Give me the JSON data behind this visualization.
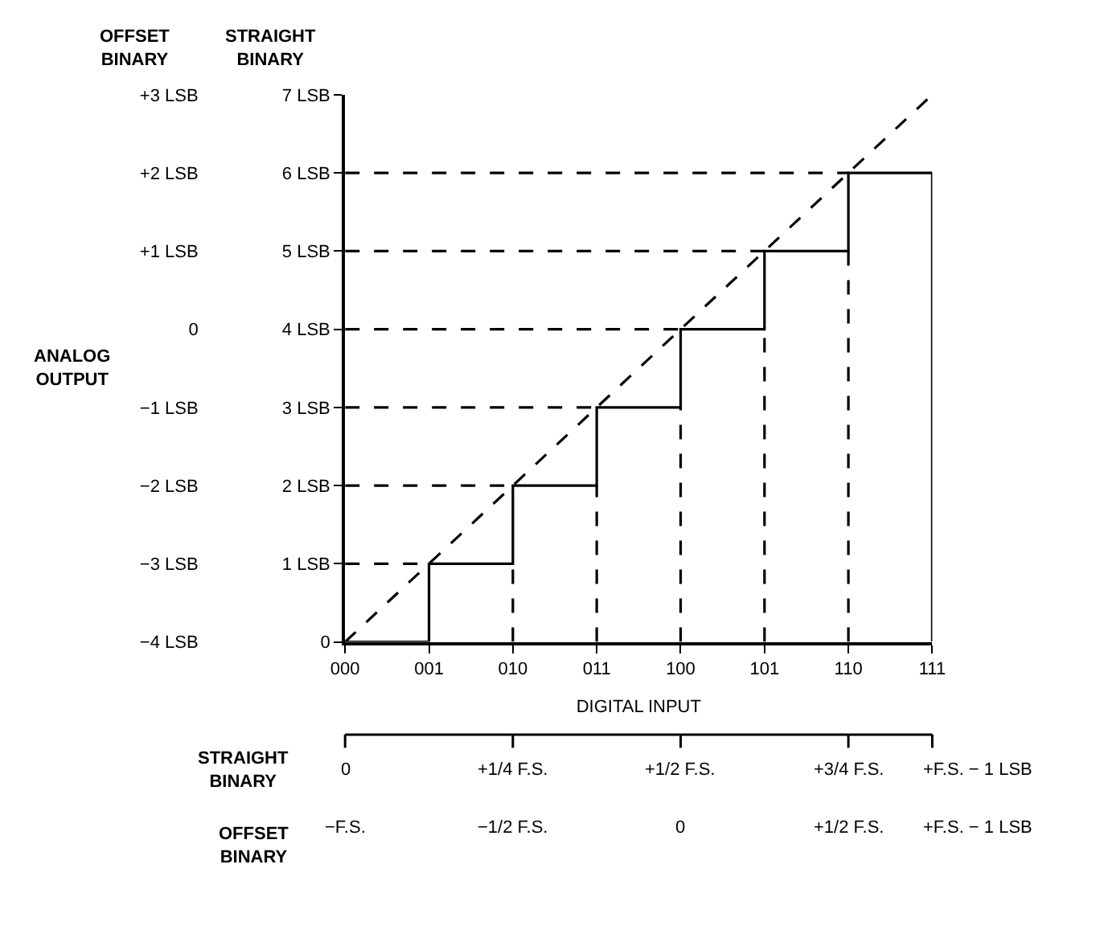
{
  "chart_data": {
    "type": "step",
    "ylabel": "STRAIGHT BINARY",
    "y2label": "OFFSET BINARY",
    "xlabel": "DIGITAL INPUT",
    "annotations": [
      "ANALOG OUTPUT",
      "STRAIGHT BINARY",
      "0",
      "+1/4 F.S.",
      "+1/2 F.S.",
      "+3/4 F.S.",
      "+F.S. − 1 LSB",
      "OFFSET BINARY",
      "−F.S.",
      "−1/2 F.S.",
      "0",
      "+1/2 F.S.",
      "+F.S. − 1 LSB"
    ],
    "categories": [
      "000",
      "001",
      "010",
      "011",
      "100",
      "101",
      "110",
      "111"
    ],
    "series": [
      {
        "color": "#000000",
        "line_style": "solid",
        "values": [
          0,
          1,
          2,
          3,
          4,
          5,
          6,
          6
        ]
      },
      {
        "type": "line",
        "color": "#000000",
        "line_style": "dashed",
        "values": [
          0,
          1,
          2,
          3,
          4,
          5,
          6,
          7
        ]
      }
    ],
    "ylim": [
      0,
      7
    ],
    "yticks": [
      0,
      {
        "value": 1,
        "label": "1 LSB"
      },
      {
        "value": 2,
        "label": "2 LSB"
      },
      {
        "value": 3,
        "label": "3 LSB"
      },
      {
        "value": 4,
        "label": "4 LSB"
      },
      {
        "value": 5,
        "label": "5 LSB"
      },
      {
        "value": 6,
        "label": "6 LSB"
      },
      {
        "value": 7,
        "label": "7 LSB"
      }
    ],
    "y2lim": [
      -4,
      3
    ],
    "y2ticks": [
      {
        "value": -4,
        "label": "−4 LSB"
      },
      {
        "value": -3,
        "label": "−3 LSB"
      },
      {
        "value": -2,
        "label": "−2 LSB"
      },
      {
        "value": -1,
        "label": "−1 LSB"
      },
      0,
      {
        "value": 1,
        "label": "+1 LSB"
      },
      {
        "value": 2,
        "label": "+2 LSB"
      },
      {
        "value": 3,
        "label": "+3 LSB"
      }
    ],
    "ref_lines": [
      {
        "axis": "x",
        "value": "010",
        "line_style": "dashed",
        "color": "#000000"
      },
      {
        "axis": "x",
        "value": "011",
        "line_style": "dashed",
        "color": "#000000"
      },
      {
        "axis": "x",
        "value": "100",
        "line_style": "dashed",
        "color": "#000000"
      },
      {
        "axis": "x",
        "value": "101",
        "line_style": "dashed",
        "color": "#000000"
      },
      {
        "axis": "x",
        "value": "110",
        "line_style": "dashed",
        "color": "#000000"
      },
      {
        "axis": "x",
        "value": "111",
        "line_style": "solid",
        "color": "#000000"
      },
      {
        "axis": "y",
        "value": 1,
        "line_style": "dashed",
        "color": "#000000"
      },
      {
        "axis": "y",
        "value": 2,
        "line_style": "dashed",
        "color": "#000000"
      },
      {
        "axis": "y",
        "value": 3,
        "line_style": "dashed",
        "color": "#000000"
      },
      {
        "axis": "y",
        "value": 4,
        "line_style": "dashed",
        "color": "#000000"
      },
      {
        "axis": "y",
        "value": 5,
        "line_style": "dashed",
        "color": "#000000"
      },
      {
        "axis": "y",
        "value": 6,
        "line_style": "dashed",
        "color": "#000000"
      }
    ],
    "marker": "none"
  }
}
